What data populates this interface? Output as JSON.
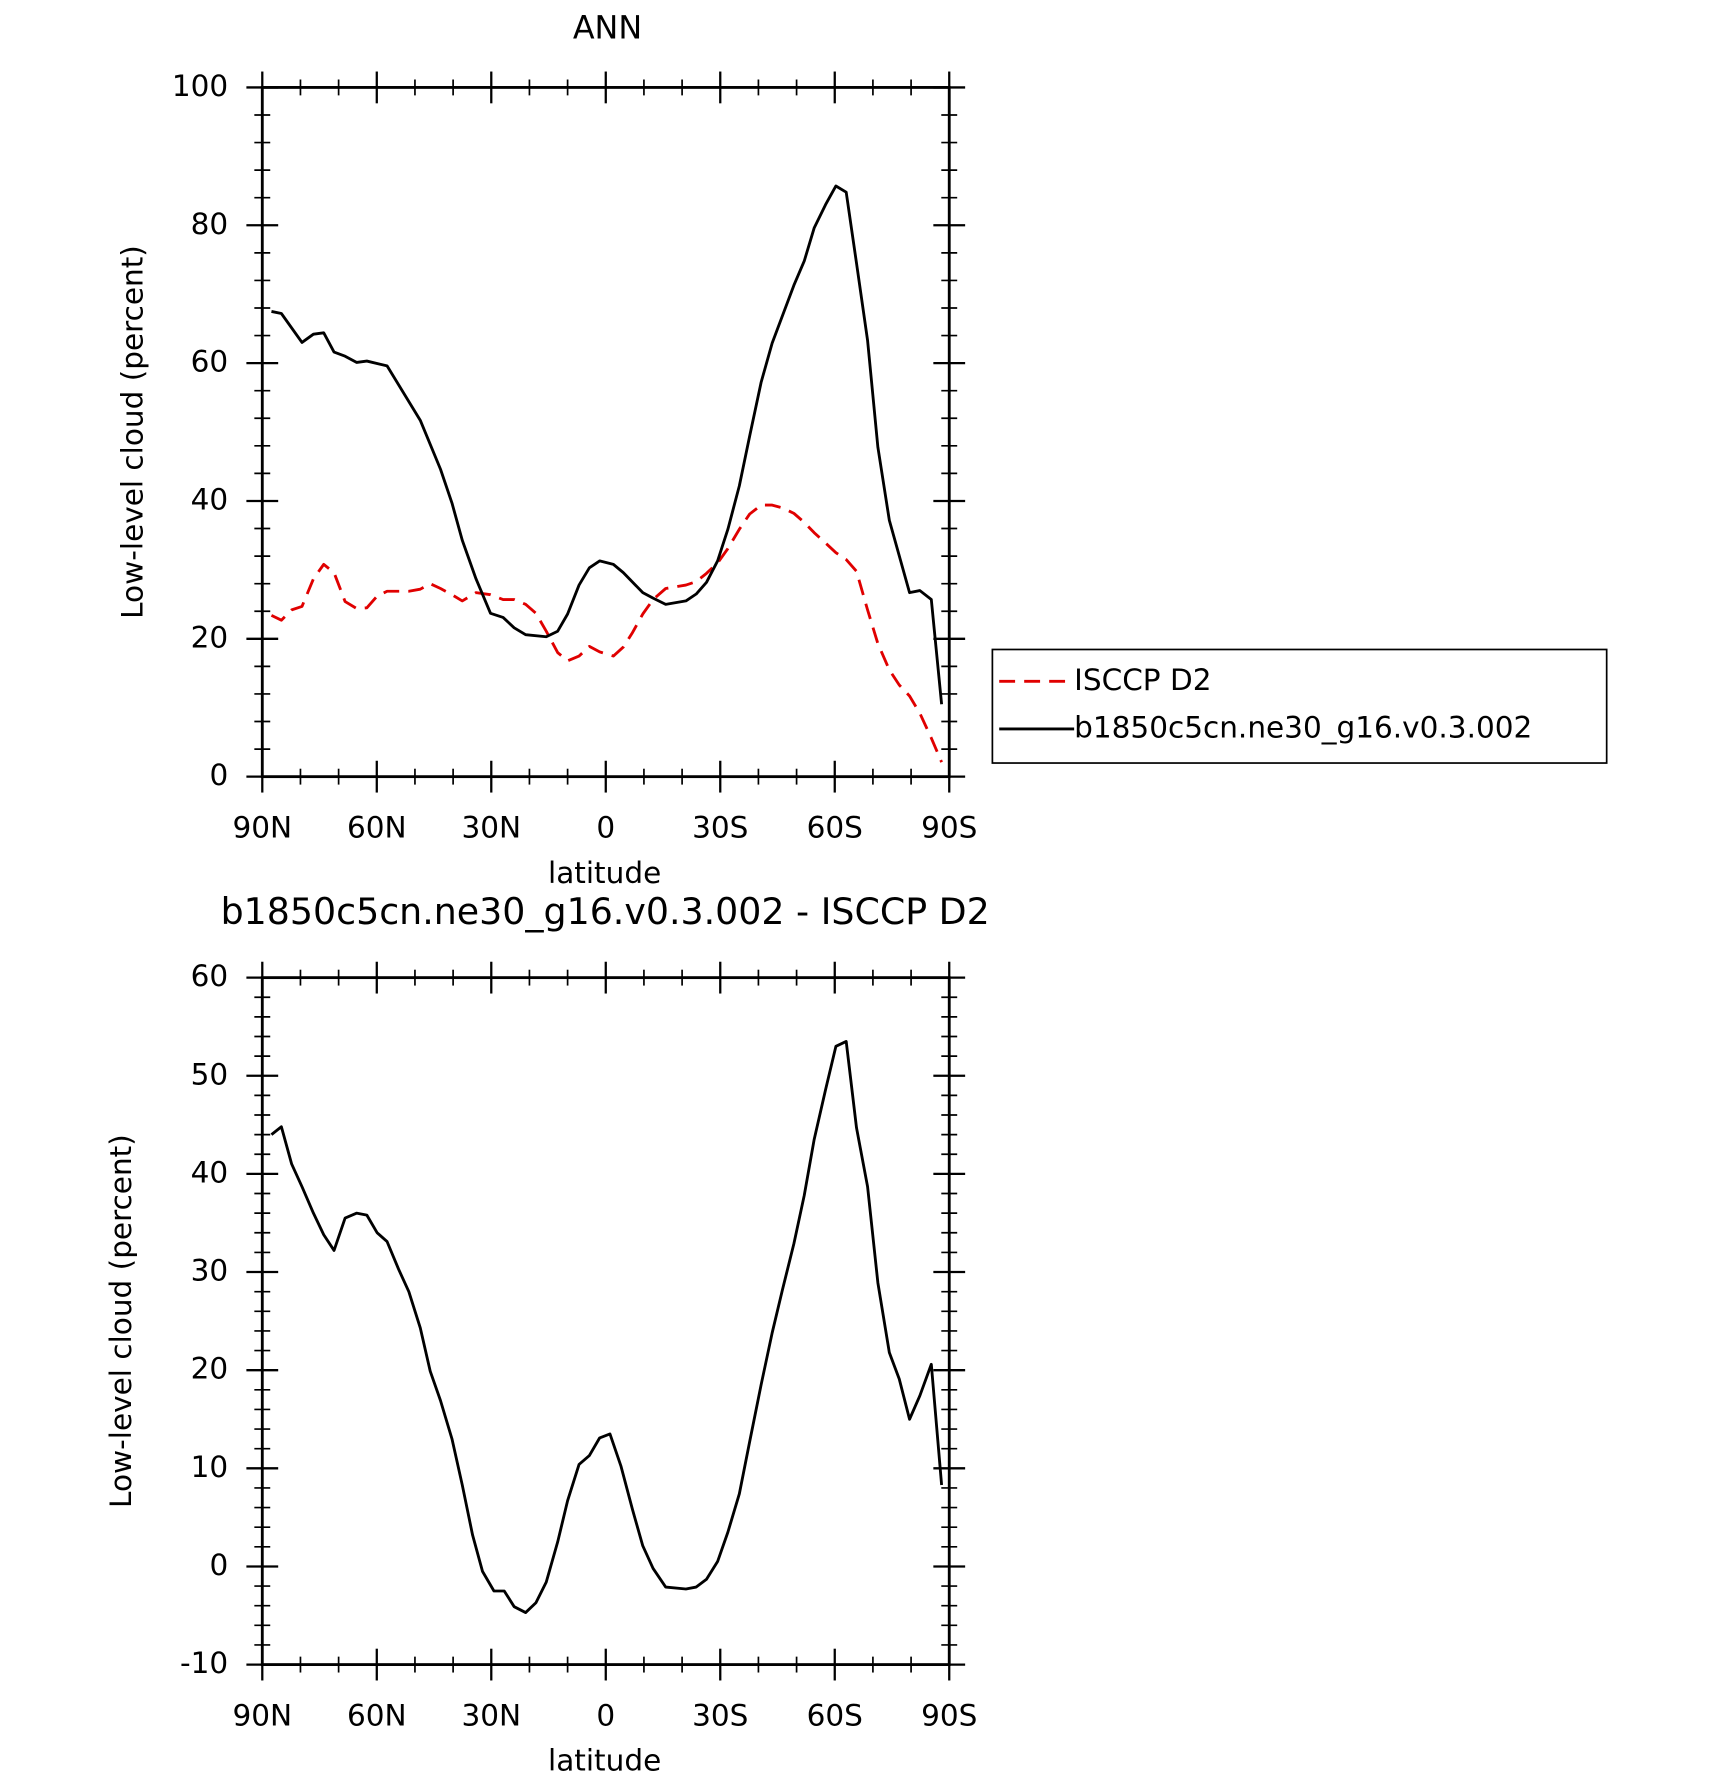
{
  "chart_data": [
    {
      "type": "line",
      "title": "ANN",
      "xlabel": "latitude",
      "ylabel": "Low-level cloud (percent)",
      "xlim": [
        90,
        -90
      ],
      "xticks": [
        {
          "value": 90,
          "label": "90N"
        },
        {
          "value": 60,
          "label": "60N"
        },
        {
          "value": 30,
          "label": "30N"
        },
        0,
        {
          "value": -30,
          "label": "30S"
        },
        {
          "value": -60,
          "label": "60S"
        },
        {
          "value": -90,
          "label": "90S"
        }
      ],
      "ylim": [
        0,
        100
      ],
      "yticks": [
        0,
        20,
        40,
        60,
        80,
        100
      ],
      "legend": "outside-right",
      "series": [
        {
          "name": "ISCCP D2",
          "color": "#e00000",
          "dash": true,
          "x": [
            87.6,
            85,
            82.3,
            79.6,
            76.6,
            73.9,
            71.2,
            68.3,
            65.3,
            62.6,
            59.9,
            57.3,
            51.6,
            48.6,
            46,
            43.3,
            40.3,
            37.6,
            34,
            30.2,
            26.9,
            24,
            21,
            18.3,
            15.6,
            12.6,
            10,
            7,
            4.3,
            1.6,
            -2,
            -4.6,
            -7,
            -9.7,
            -12.4,
            -15.7,
            -21,
            -23.7,
            -26.4,
            -29.3,
            -32,
            -35,
            -37.7,
            -40.7,
            -43.6,
            -46.3,
            -49.3,
            -52,
            -54.6,
            -57.6,
            -60.3,
            -63,
            -65.7,
            -68.6,
            -71.3,
            -74.3,
            -76.9,
            -79.6,
            -82.3,
            -85.3,
            -88
          ],
          "values": [
            23.4,
            22.7,
            24.2,
            24.7,
            28.7,
            30.8,
            29.6,
            25.4,
            24.4,
            24.5,
            26.2,
            26.9,
            26.9,
            27.2,
            28,
            27.3,
            26.4,
            25.5,
            26.7,
            26.4,
            25.7,
            25.7,
            25,
            23.7,
            21.1,
            18,
            16.8,
            17.5,
            18.9,
            18.1,
            17.5,
            18.8,
            20.9,
            23.6,
            25.7,
            27.3,
            27.8,
            28.3,
            29.5,
            31,
            33.1,
            35.9,
            38.1,
            39.4,
            39.4,
            39,
            38.2,
            36.9,
            35.4,
            33.9,
            32.5,
            31.5,
            29.8,
            24.2,
            19.3,
            15.5,
            13.3,
            11.7,
            9.2,
            5.6,
            2.1
          ]
        },
        {
          "name": "b1850c5cn.ne30_g16.v0.3.002",
          "color": "#000000",
          "dash": false,
          "x": [
            87.6,
            85,
            79.6,
            76.6,
            73.9,
            71.2,
            68.3,
            65.3,
            62.6,
            57.3,
            48.6,
            43.3,
            40.3,
            37.6,
            34,
            30.2,
            26.9,
            24,
            21,
            15.6,
            12.6,
            10,
            7,
            4.3,
            1.6,
            -2,
            -4.6,
            -9.7,
            -12.4,
            -15.7,
            -21,
            -23.7,
            -26.4,
            -29.3,
            -32,
            -35,
            -37.7,
            -40.7,
            -43.6,
            -49.3,
            -52,
            -54.6,
            -57.6,
            -60.3,
            -63,
            -65.7,
            -68.6,
            -71.3,
            -74.3,
            -79.6,
            -82.3,
            -85.3,
            -88
          ],
          "values": [
            67.5,
            67.2,
            63,
            64.2,
            64.4,
            61.6,
            61,
            60.1,
            60.3,
            59.6,
            51.7,
            44.6,
            39.7,
            34.3,
            28.7,
            23.7,
            23.1,
            21.6,
            20.6,
            20.3,
            21.1,
            23.6,
            27.8,
            30.3,
            31.3,
            30.8,
            29.6,
            26.7,
            25.9,
            25,
            25.5,
            26.5,
            28.2,
            31.3,
            35.9,
            42.2,
            49.4,
            57.2,
            62.9,
            71.3,
            74.8,
            79.6,
            83,
            85.7,
            84.8,
            74.5,
            63.3,
            47.8,
            37.2,
            26.7,
            27,
            25.7,
            10.5
          ]
        }
      ]
    },
    {
      "type": "line",
      "title": "b1850c5cn.ne30_g16.v0.3.002 - ISCCP D2",
      "xlabel": "latitude",
      "ylabel": "Low-level cloud (percent)",
      "xlim": [
        90,
        -90
      ],
      "xticks": [
        {
          "value": 90,
          "label": "90N"
        },
        {
          "value": 60,
          "label": "60N"
        },
        {
          "value": 30,
          "label": "30N"
        },
        0,
        {
          "value": -30,
          "label": "30S"
        },
        {
          "value": -60,
          "label": "60S"
        },
        {
          "value": -90,
          "label": "90S"
        }
      ],
      "ylim": [
        -10,
        60
      ],
      "yticks": [
        -10,
        0,
        10,
        20,
        30,
        40,
        50,
        60
      ],
      "series": [
        {
          "color": "#000000",
          "dash": false,
          "x": [
            87.6,
            85,
            82.3,
            79.6,
            76.6,
            73.9,
            71.2,
            68.3,
            65.3,
            62.6,
            59.9,
            57.3,
            54.3,
            51.6,
            48.6,
            46,
            43.3,
            40.3,
            37.6,
            34.9,
            32.3,
            29.3,
            26.6,
            24,
            21,
            18.3,
            15.6,
            12.6,
            10,
            7,
            4.3,
            1.6,
            -1.1,
            -4,
            -7,
            -9.7,
            -12.4,
            -15.7,
            -21,
            -23.7,
            -26.4,
            -29.3,
            -32,
            -35,
            -37.7,
            -40.7,
            -43.6,
            -46.3,
            -49.3,
            -52,
            -54.6,
            -57.6,
            -60.3,
            -63,
            -65.7,
            -68.6,
            -71.3,
            -74.3,
            -76.9,
            -79.6,
            -82.3,
            -85.3,
            -88
          ],
          "values": [
            44,
            44.8,
            41,
            38.7,
            36,
            33.8,
            32.2,
            35.5,
            36,
            35.8,
            34,
            33.1,
            30.3,
            28,
            24.3,
            19.9,
            16.9,
            13,
            8.3,
            3.2,
            -0.5,
            -2.5,
            -2.5,
            -4.1,
            -4.7,
            -3.7,
            -1.6,
            2.5,
            6.7,
            10.4,
            11.3,
            13.1,
            13.5,
            10.2,
            5.8,
            2.1,
            -0.2,
            -2.1,
            -2.3,
            -2.1,
            -1.3,
            0.5,
            3.5,
            7.4,
            12.7,
            18.5,
            23.8,
            28.2,
            32.9,
            37.8,
            43.5,
            48.6,
            53,
            53.5,
            44.7,
            38.7,
            28.9,
            21.8,
            19.1,
            15,
            17.4,
            20.6,
            8.3
          ]
        }
      ]
    }
  ]
}
